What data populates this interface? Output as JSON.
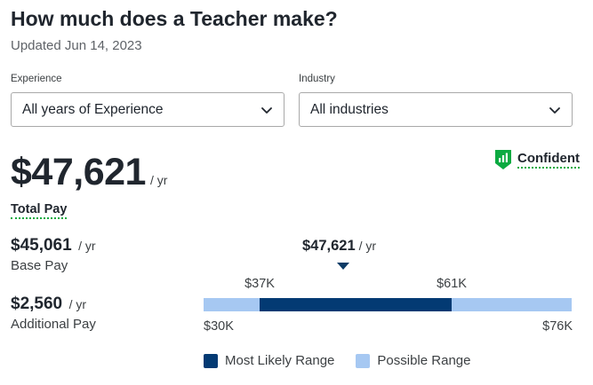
{
  "header": {
    "title": "How much does a Teacher make?",
    "updated": "Updated Jun 14, 2023"
  },
  "filters": {
    "experience": {
      "label": "Experience",
      "value": "All years of Experience"
    },
    "industry": {
      "label": "Industry",
      "value": "All industries"
    }
  },
  "total_pay": {
    "amount": "$47,621",
    "unit": "/ yr",
    "label": "Total Pay"
  },
  "confidence": {
    "label": "Confident",
    "icon": "chart-shield-icon",
    "color": "#0caa41"
  },
  "base_pay": {
    "amount": "$45,061",
    "unit": "/ yr",
    "label": "Base Pay"
  },
  "additional_pay": {
    "amount": "$2,560",
    "unit": "/ yr",
    "label": "Additional Pay"
  },
  "range": {
    "median": "$47,621",
    "median_unit": "/ yr",
    "likely_low_label": "$37K",
    "likely_high_label": "$61K",
    "possible_low_label": "$30K",
    "possible_high_label": "$76K"
  },
  "legend": {
    "likely": "Most Likely Range",
    "possible": "Possible Range"
  },
  "colors": {
    "likely": "#033a73",
    "possible": "#a6c8f2",
    "marker": "#0d3b66",
    "accent_green": "#0caa41"
  },
  "chart_data": {
    "type": "bar",
    "min": 30,
    "max": 76,
    "likely_range": [
      37,
      61
    ],
    "median": 47.621,
    "unit": "thousand USD / yr"
  }
}
